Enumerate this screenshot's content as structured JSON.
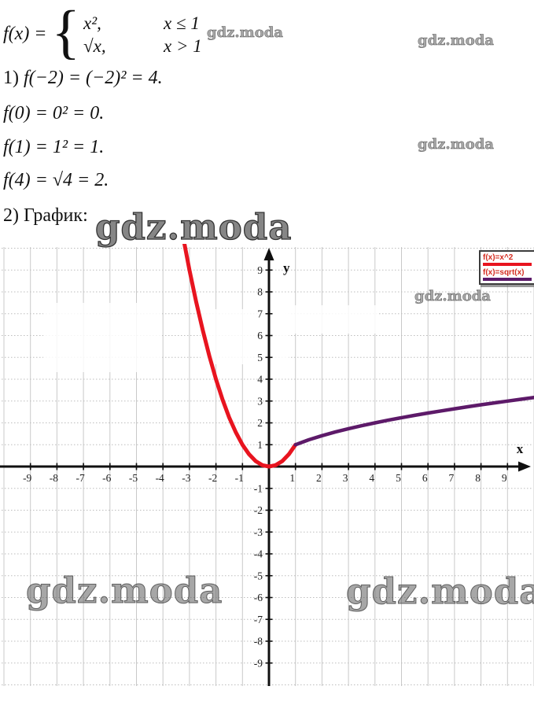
{
  "piecewise": {
    "lhs": "f(x) =",
    "brace": "{",
    "rows": [
      {
        "expr": "x²,",
        "cond": "x ≤ 1"
      },
      {
        "expr": "√x,",
        "cond": "x > 1"
      }
    ]
  },
  "lines": [
    {
      "prefix": "1) ",
      "math": "f(−2) = (−2)² = 4."
    },
    {
      "prefix": "",
      "math": "f(0) = 0² = 0."
    },
    {
      "prefix": "",
      "math": "f(1) = 1² = 1."
    },
    {
      "prefix": "",
      "math": "f(4) = √4 = 2."
    },
    {
      "prefix": "2) График:",
      "math": ""
    }
  ],
  "watermark_text": "gdz.moda",
  "legend": {
    "items": [
      {
        "label": "f(x)=x^2",
        "color": "#e8141f"
      },
      {
        "label": "f(x)=sqrt(x)",
        "color": "#5d1a69"
      }
    ]
  },
  "chart_data": {
    "type": "line",
    "title": "",
    "xlabel": "x",
    "ylabel": "y",
    "xlim": [
      -10.1,
      10
    ],
    "ylim": [
      -10.7,
      10.2
    ],
    "grid": true,
    "legend_position": "top-right",
    "x_ticks": [
      -9,
      -8,
      -7,
      -6,
      -5,
      -4,
      -3,
      -2,
      -1,
      1,
      2,
      3,
      4,
      5,
      6,
      7,
      8,
      9
    ],
    "y_ticks": [
      9,
      8,
      7,
      6,
      5,
      4,
      3,
      2,
      1,
      -1,
      -2,
      -3,
      -4,
      -5,
      -6,
      -7,
      -8,
      -9
    ],
    "series": [
      {
        "name": "f(x)=x^2",
        "color": "#e8141f",
        "width": 5,
        "points": [
          [
            -3.35,
            11.2225
          ],
          [
            -3,
            9
          ],
          [
            -2.75,
            7.5625
          ],
          [
            -2.5,
            6.25
          ],
          [
            -2.25,
            5.0625
          ],
          [
            -2,
            4
          ],
          [
            -1.75,
            3.0625
          ],
          [
            -1.5,
            2.25
          ],
          [
            -1.25,
            1.5625
          ],
          [
            -1,
            1
          ],
          [
            -0.75,
            0.5625
          ],
          [
            -0.5,
            0.25
          ],
          [
            -0.25,
            0.0625
          ],
          [
            0,
            0
          ],
          [
            0.25,
            0.0625
          ],
          [
            0.5,
            0.25
          ],
          [
            0.75,
            0.5625
          ],
          [
            1,
            1
          ]
        ]
      },
      {
        "name": "f(x)=sqrt(x)",
        "color": "#5d1a69",
        "width": 4.5,
        "points": [
          [
            1,
            1
          ],
          [
            1.5,
            1.2247
          ],
          [
            2,
            1.4142
          ],
          [
            2.5,
            1.5811
          ],
          [
            3,
            1.7321
          ],
          [
            3.5,
            1.8708
          ],
          [
            4,
            2
          ],
          [
            4.5,
            2.1213
          ],
          [
            5,
            2.2361
          ],
          [
            5.5,
            2.3452
          ],
          [
            6,
            2.4495
          ],
          [
            6.5,
            2.5495
          ],
          [
            7,
            2.6458
          ],
          [
            7.5,
            2.7386
          ],
          [
            8,
            2.8284
          ],
          [
            8.5,
            2.9155
          ],
          [
            9,
            3
          ],
          [
            9.5,
            3.0822
          ],
          [
            10,
            3.1623
          ]
        ]
      }
    ]
  }
}
